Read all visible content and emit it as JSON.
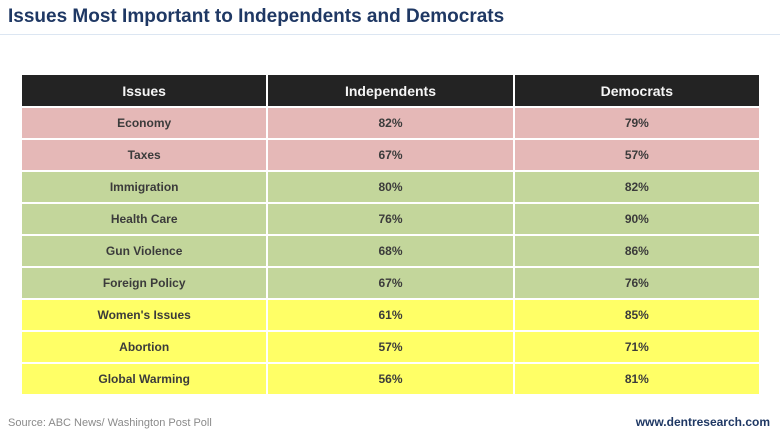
{
  "title": "Issues Most Important to Independents and Democrats",
  "table": {
    "headers": [
      "Issues",
      "Independents",
      "Democrats"
    ],
    "rows": [
      [
        "Economy",
        "82%",
        "79%"
      ],
      [
        "Taxes",
        "67%",
        "57%"
      ],
      [
        "Immigration",
        "80%",
        "82%"
      ],
      [
        "Health Care",
        "76%",
        "90%"
      ],
      [
        "Gun Violence",
        "68%",
        "86%"
      ],
      [
        "Foreign Policy",
        "67%",
        "76%"
      ],
      [
        "Women's Issues",
        "61%",
        "85%"
      ],
      [
        "Abortion",
        "57%",
        "71%"
      ],
      [
        "Global Warming",
        "56%",
        "81%"
      ]
    ]
  },
  "footer": {
    "source": "Source: ABC News/ Washington Post Poll",
    "website": "www.dentresearch.com"
  },
  "colors": {
    "title_text": "#1F3864",
    "header_bg": "#232323",
    "row_pink": "#E5B8B7",
    "row_green": "#C3D69B",
    "row_yellow": "#FFFF66"
  },
  "chart_data": {
    "type": "table",
    "title": "Issues Most Important to Independents and Democrats",
    "columns": [
      "Issues",
      "Independents",
      "Democrats"
    ],
    "categories": [
      "Economy",
      "Taxes",
      "Immigration",
      "Health Care",
      "Gun Violence",
      "Foreign Policy",
      "Women's Issues",
      "Abortion",
      "Global Warming"
    ],
    "series": [
      {
        "name": "Independents",
        "values": [
          82,
          67,
          80,
          76,
          68,
          67,
          61,
          57,
          56
        ]
      },
      {
        "name": "Democrats",
        "values": [
          79,
          57,
          82,
          90,
          86,
          76,
          85,
          71,
          81
        ]
      }
    ],
    "row_color_groups": [
      "pink",
      "pink",
      "green",
      "green",
      "green",
      "green",
      "yellow",
      "yellow",
      "yellow"
    ],
    "source": "Source: ABC News/ Washington Post Poll"
  }
}
